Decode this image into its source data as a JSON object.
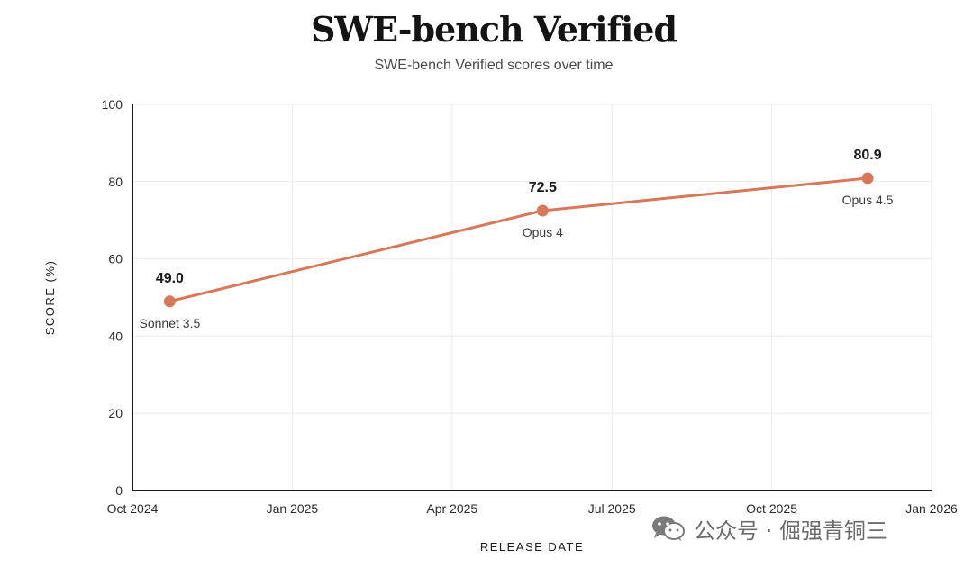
{
  "chart_data": {
    "type": "line",
    "title": "SWE-bench Verified",
    "subtitle": "SWE-bench Verified scores over time",
    "xlabel": "RELEASE DATE",
    "ylabel": "SCORE (%)",
    "x_ticks": [
      "Oct 2024",
      "Jan 2025",
      "Apr 2025",
      "Jul 2025",
      "Oct 2025",
      "Jan 2026"
    ],
    "y_ticks": [
      0,
      20,
      40,
      60,
      80,
      100
    ],
    "ylim": [
      0,
      100
    ],
    "xlim_months": [
      0,
      15
    ],
    "grid": true,
    "series": [
      {
        "name": "SWE-bench Verified",
        "color": "#d97757",
        "points": [
          {
            "label": "Sonnet 3.5",
            "month": 0.7,
            "value": 49.0,
            "value_label": "49.0"
          },
          {
            "label": "Opus 4",
            "month": 7.7,
            "value": 72.5,
            "value_label": "72.5"
          },
          {
            "label": "Opus 4.5",
            "month": 13.8,
            "value": 80.9,
            "value_label": "80.9"
          }
        ]
      }
    ]
  },
  "watermark": {
    "text": "公众号 · 倔强青铜三"
  }
}
